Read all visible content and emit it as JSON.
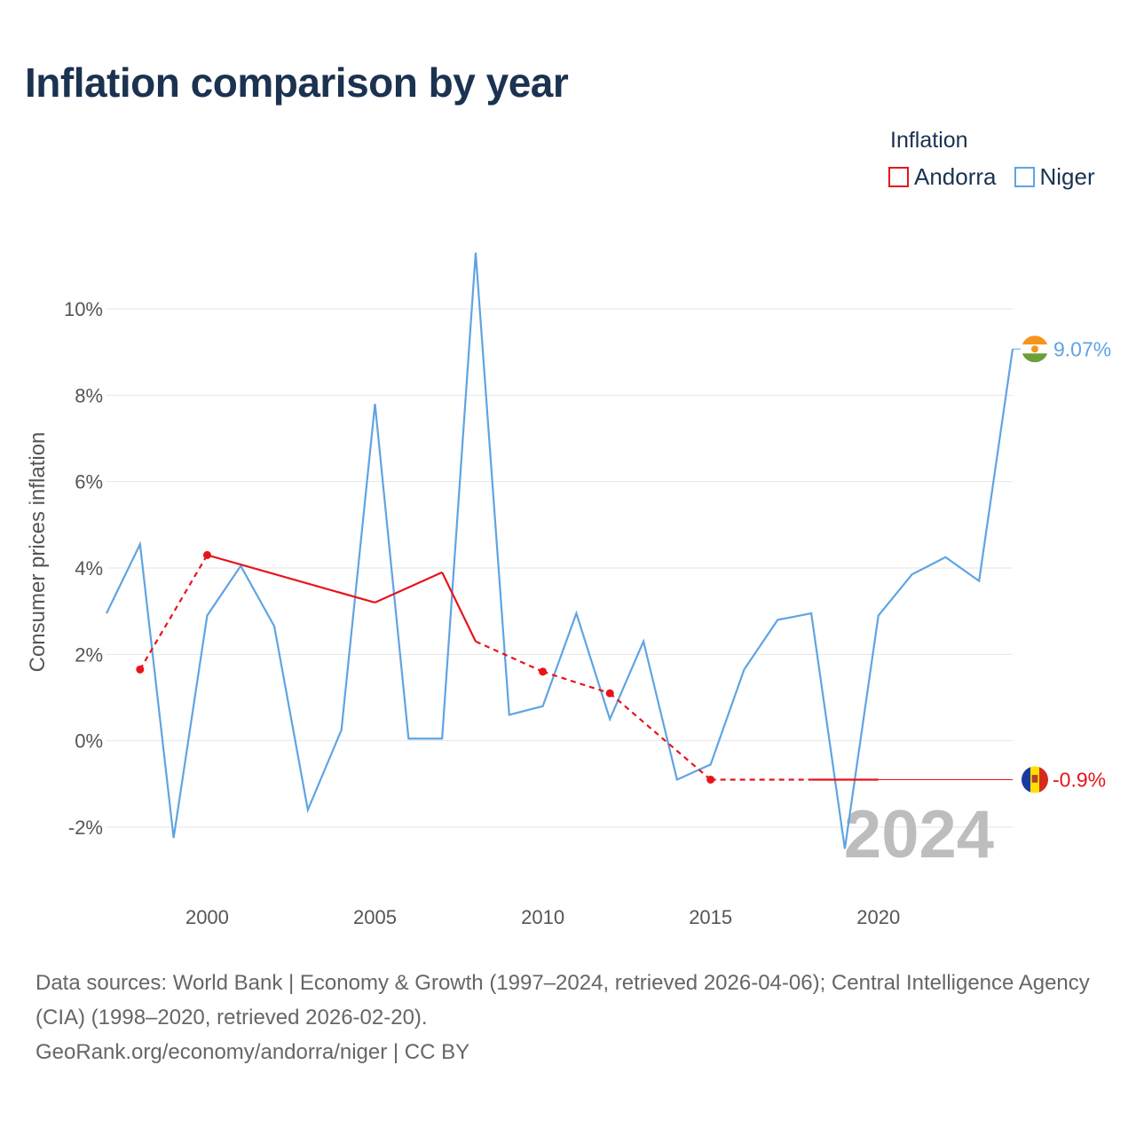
{
  "title": "Inflation comparison by year",
  "legend": {
    "title": "Inflation",
    "items": [
      {
        "label": "Andorra",
        "color": "#e8141b"
      },
      {
        "label": "Niger",
        "color": "#5fa4e2"
      }
    ]
  },
  "chart_data": {
    "type": "line",
    "title": "Inflation comparison by year",
    "xlabel": "",
    "ylabel": "Consumer prices inflation",
    "xlim": [
      1997,
      2024
    ],
    "ylim": [
      -3.5,
      11.5
    ],
    "xticks": [
      2000,
      2005,
      2010,
      2015,
      2020
    ],
    "yticks": [
      -2,
      0,
      2,
      4,
      6,
      8,
      10
    ],
    "ytick_labels": [
      "-2%",
      "0%",
      "2%",
      "4%",
      "6%",
      "8%",
      "10%"
    ],
    "current_year": "2024",
    "grid": true,
    "series": [
      {
        "name": "Niger",
        "color": "#5fa4e2",
        "end_label": "9.07%",
        "points": [
          [
            1997,
            2.95
          ],
          [
            1998,
            4.55
          ],
          [
            1999,
            -2.25
          ],
          [
            2000,
            2.9
          ],
          [
            2001,
            4.05
          ],
          [
            2002,
            2.65
          ],
          [
            2003,
            -1.6
          ],
          [
            2004,
            0.25
          ],
          [
            2005,
            7.8
          ],
          [
            2006,
            0.05
          ],
          [
            2007,
            0.05
          ],
          [
            2008,
            11.3
          ],
          [
            2009,
            0.6
          ],
          [
            2010,
            0.8
          ],
          [
            2011,
            2.95
          ],
          [
            2012,
            0.5
          ],
          [
            2013,
            2.3
          ],
          [
            2014,
            -0.9
          ],
          [
            2015,
            -0.55
          ],
          [
            2016,
            1.65
          ],
          [
            2017,
            2.8
          ],
          [
            2018,
            2.95
          ],
          [
            2019,
            -2.5
          ],
          [
            2020,
            2.9
          ],
          [
            2021,
            3.85
          ],
          [
            2022,
            4.25
          ],
          [
            2023,
            3.7
          ],
          [
            2024,
            9.07
          ]
        ]
      },
      {
        "name": "Andorra",
        "color": "#e8141b",
        "end_label": "-0.9%",
        "points": [
          [
            1998,
            1.65
          ],
          [
            2000,
            4.3
          ],
          [
            2005,
            3.2
          ],
          [
            2007,
            3.9
          ],
          [
            2008,
            2.3
          ],
          [
            2010,
            1.6
          ],
          [
            2012,
            1.1
          ],
          [
            2015,
            -0.9
          ],
          [
            2018,
            -0.9
          ],
          [
            2020,
            -0.9
          ]
        ],
        "markers": [
          1998,
          2000,
          2010,
          2012,
          2015
        ],
        "solid_segments": [
          [
            2000,
            2005
          ],
          [
            2005,
            2007
          ],
          [
            2007,
            2008
          ],
          [
            2018,
            2020
          ]
        ],
        "dashed_segments": [
          [
            1998,
            2000
          ],
          [
            2008,
            2010
          ],
          [
            2010,
            2012
          ],
          [
            2012,
            2015
          ],
          [
            2015,
            2018
          ]
        ],
        "extension_to": 2024
      }
    ]
  },
  "footer": {
    "sources": "Data sources: World Bank | Economy & Growth (1997–2024, retrieved 2026-04-06); Central Intelligence Agency (CIA) (1998–2020, retrieved 2026-02-20).",
    "credit": "GeoRank.org/economy/andorra/niger | CC BY"
  }
}
